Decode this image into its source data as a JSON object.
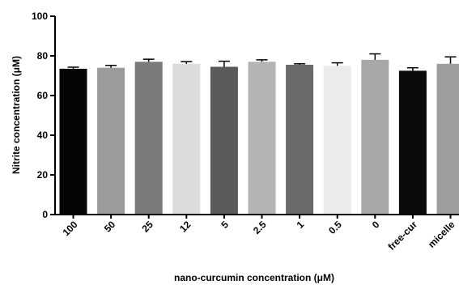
{
  "chart_data": {
    "type": "bar",
    "title": "",
    "xlabel": "nano-curcumin concentration (μM)",
    "ylabel": "Nitrite concentration (μM)",
    "ylim": [
      0,
      100
    ],
    "yticks": [
      0,
      20,
      40,
      60,
      80,
      100
    ],
    "grid": false,
    "legend": "none",
    "categories": [
      "100",
      "50",
      "25",
      "12",
      "5",
      "2.5",
      "1",
      "0.5",
      "0",
      "free-cur",
      "micelle"
    ],
    "values": [
      73.5,
      74,
      77,
      76,
      74.5,
      77,
      75.5,
      75,
      78,
      72.5,
      76
    ],
    "errors": [
      0.8,
      1.2,
      1.3,
      1.1,
      2.8,
      1.0,
      0.5,
      1.5,
      3.0,
      1.5,
      3.5
    ],
    "colors": [
      "#050505",
      "#9b9b9b",
      "#7a7a7a",
      "#dcdcdc",
      "#5a5a5a",
      "#b4b4b4",
      "#6a6a6a",
      "#ebebeb",
      "#a8a8a8",
      "#0a0a0a",
      "#9e9e9e"
    ]
  }
}
